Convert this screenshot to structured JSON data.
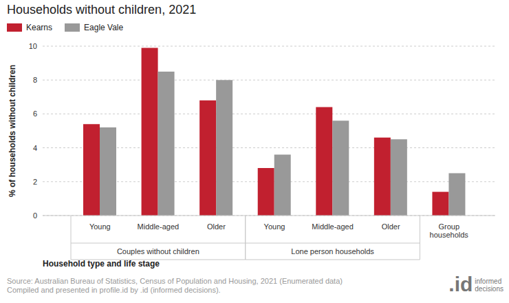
{
  "chart_data": {
    "type": "bar",
    "title": "Households without children, 2021",
    "x_label": "Household type and life stage",
    "y_label": "% of households without children",
    "categories": [
      "Young",
      "Middle-aged",
      "Older",
      "Young",
      "Middle-aged",
      "Older",
      "Group households"
    ],
    "category_groups": [
      "Couples without children",
      "Couples without children",
      "Couples without children",
      "Lone person households",
      "Lone person households",
      "Lone person households",
      null
    ],
    "series": [
      {
        "name": "Kearns",
        "color": "#c1202f",
        "values": [
          5.4,
          9.9,
          6.8,
          2.8,
          6.4,
          4.6,
          1.4
        ]
      },
      {
        "name": "Eagle Vale",
        "color": "#999999",
        "values": [
          5.2,
          8.5,
          8.0,
          3.6,
          5.6,
          4.5,
          2.5
        ]
      }
    ],
    "ylim": [
      0,
      10
    ],
    "yticks": [
      0,
      2,
      4,
      6,
      8,
      10
    ],
    "grid": true,
    "legend": "top-left",
    "source": [
      "Source: Australian Bureau of Statistics, Census of Population and Housing, 2021 (Enumerated data)",
      "Compiled and presented in profile.id by .id (informed decisions)."
    ],
    "logo": [
      ".id",
      "informed",
      "decisions"
    ]
  }
}
